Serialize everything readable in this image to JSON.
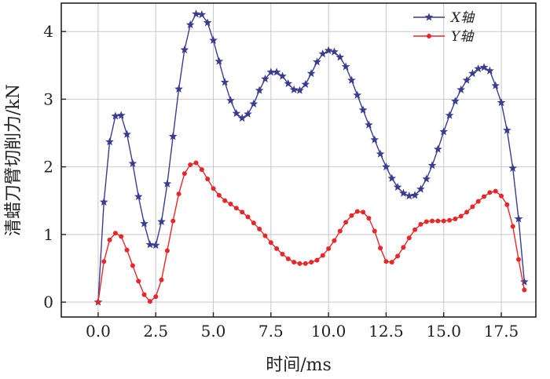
{
  "chart_data": {
    "type": "line",
    "xlabel": "时间/ms",
    "ylabel": "清蜡刀臂切削力/kN",
    "xlim": [
      -1.6,
      19.0
    ],
    "ylim": [
      -0.22,
      4.42
    ],
    "xticks": [
      "0.0",
      "2.5",
      "5.0",
      "7.5",
      "10.0",
      "12.5",
      "15.0",
      "17.5"
    ],
    "xtick_values": [
      0,
      2.5,
      5,
      7.5,
      10,
      12.5,
      15,
      17.5
    ],
    "yticks": [
      "0",
      "1",
      "2",
      "3",
      "4"
    ],
    "ytick_values": [
      0,
      1,
      2,
      3,
      4
    ],
    "grid": true,
    "legend_position": "top-right",
    "series": [
      {
        "name": "X轴",
        "color": "#3a3d8f",
        "marker": "star",
        "x": [
          0.0,
          0.25,
          0.5,
          0.75,
          1.0,
          1.25,
          1.5,
          1.75,
          2.0,
          2.25,
          2.5,
          2.75,
          3.0,
          3.25,
          3.5,
          3.75,
          4.0,
          4.25,
          4.5,
          4.75,
          5.0,
          5.25,
          5.5,
          5.75,
          6.0,
          6.25,
          6.5,
          6.75,
          7.0,
          7.25,
          7.5,
          7.75,
          8.0,
          8.25,
          8.5,
          8.75,
          9.0,
          9.25,
          9.5,
          9.75,
          10.0,
          10.25,
          10.5,
          10.75,
          11.0,
          11.25,
          11.5,
          11.75,
          12.0,
          12.25,
          12.5,
          12.75,
          13.0,
          13.25,
          13.5,
          13.75,
          14.0,
          14.25,
          14.5,
          14.75,
          15.0,
          15.25,
          15.5,
          15.75,
          16.0,
          16.25,
          16.5,
          16.75,
          17.0,
          17.25,
          17.5,
          17.75,
          18.0,
          18.25,
          18.5
        ],
        "y": [
          0.0,
          1.48,
          2.37,
          2.75,
          2.76,
          2.48,
          2.05,
          1.56,
          1.16,
          0.85,
          0.84,
          1.19,
          1.75,
          2.45,
          3.15,
          3.73,
          4.1,
          4.26,
          4.25,
          4.13,
          3.87,
          3.56,
          3.25,
          2.98,
          2.79,
          2.72,
          2.78,
          2.93,
          3.13,
          3.3,
          3.4,
          3.4,
          3.34,
          3.23,
          3.14,
          3.13,
          3.22,
          3.38,
          3.55,
          3.67,
          3.72,
          3.7,
          3.62,
          3.48,
          3.28,
          3.06,
          2.84,
          2.62,
          2.4,
          2.19,
          2.0,
          1.83,
          1.7,
          1.61,
          1.57,
          1.58,
          1.67,
          1.82,
          2.02,
          2.26,
          2.52,
          2.76,
          2.97,
          3.14,
          3.28,
          3.38,
          3.45,
          3.47,
          3.42,
          3.2,
          2.95,
          2.54,
          1.98,
          1.23,
          0.3
        ]
      },
      {
        "name": "Y轴",
        "color": "#e8272a",
        "marker": "circle",
        "x": [
          0.0,
          0.25,
          0.5,
          0.75,
          1.0,
          1.25,
          1.5,
          1.75,
          2.0,
          2.25,
          2.5,
          2.75,
          3.0,
          3.25,
          3.5,
          3.75,
          4.0,
          4.25,
          4.5,
          4.75,
          5.0,
          5.25,
          5.5,
          5.75,
          6.0,
          6.25,
          6.5,
          6.75,
          7.0,
          7.25,
          7.5,
          7.75,
          8.0,
          8.25,
          8.5,
          8.75,
          9.0,
          9.25,
          9.5,
          9.75,
          10.0,
          10.25,
          10.5,
          10.75,
          11.0,
          11.25,
          11.5,
          11.75,
          12.0,
          12.25,
          12.5,
          12.75,
          13.0,
          13.25,
          13.5,
          13.75,
          14.0,
          14.25,
          14.5,
          14.75,
          15.0,
          15.25,
          15.5,
          15.75,
          16.0,
          16.25,
          16.5,
          16.75,
          17.0,
          17.25,
          17.5,
          17.75,
          18.0,
          18.25,
          18.5
        ],
        "y": [
          0.0,
          0.6,
          0.92,
          1.02,
          0.97,
          0.77,
          0.54,
          0.31,
          0.11,
          0.01,
          0.08,
          0.33,
          0.76,
          1.2,
          1.6,
          1.9,
          2.03,
          2.06,
          1.96,
          1.82,
          1.68,
          1.58,
          1.5,
          1.45,
          1.39,
          1.33,
          1.26,
          1.17,
          1.08,
          0.98,
          0.88,
          0.79,
          0.71,
          0.64,
          0.59,
          0.57,
          0.57,
          0.59,
          0.62,
          0.69,
          0.79,
          0.91,
          1.05,
          1.18,
          1.28,
          1.34,
          1.33,
          1.24,
          1.05,
          0.8,
          0.6,
          0.59,
          0.68,
          0.81,
          0.95,
          1.07,
          1.15,
          1.19,
          1.2,
          1.2,
          1.2,
          1.21,
          1.23,
          1.27,
          1.33,
          1.41,
          1.49,
          1.56,
          1.62,
          1.64,
          1.57,
          1.44,
          1.12,
          0.63,
          0.18
        ]
      }
    ]
  }
}
